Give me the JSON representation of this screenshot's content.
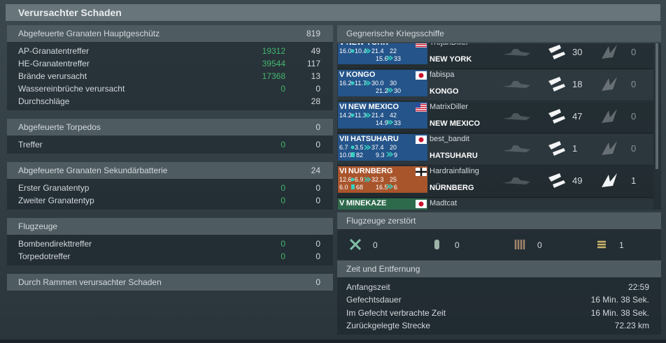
{
  "header": {
    "title": "Verursachter Schaden"
  },
  "left": {
    "sections": [
      {
        "title": "Abgefeuerte Granaten Hauptgeschütz",
        "total": 819,
        "rows": [
          {
            "label": "AP-Granatentreffer",
            "damage": 19312,
            "count": 49
          },
          {
            "label": "HE-Granatentreffer",
            "damage": 39544,
            "count": 117
          },
          {
            "label": "Brände verursacht",
            "damage": 17368,
            "count": 13
          },
          {
            "label": "Wassereinbrüche verursacht",
            "damage": 0,
            "count": 0
          },
          {
            "label": "Durchschläge",
            "count": 28
          }
        ]
      },
      {
        "title": "Abgefeuerte Torpedos",
        "total": 0,
        "rows": [
          {
            "label": "Treffer",
            "damage": 0,
            "count": 0
          }
        ]
      },
      {
        "title": "Abgefeuerte Granaten Sekundärbatterie",
        "total": 24,
        "rows": [
          {
            "label": "Erster Granatentyp",
            "damage": 0,
            "count": 0
          },
          {
            "label": "Zweiter Granatentyp",
            "damage": 0,
            "count": 0
          }
        ]
      },
      {
        "title": "Flugzeuge",
        "rows": [
          {
            "label": "Bombendirekttreffer",
            "damage": 0,
            "count": 0
          },
          {
            "label": "Torpedotreffer",
            "damage": 0,
            "count": 0
          }
        ]
      },
      {
        "title": "Durch Rammen verursachter Schaden",
        "total": 0,
        "rows": []
      }
    ]
  },
  "ships": {
    "title": "Gegnerische Kriegsschiffe",
    "rows": [
      {
        "tier": "V",
        "card_name": "NEW YORK",
        "stats": [
          "16.0",
          "10.4",
          "21.4",
          "22"
        ],
        "stats2": [
          "15.6",
          "33"
        ],
        "player": "TrojanDiller",
        "ship": "NEW YORK",
        "hits": 30,
        "fires": 0
      },
      {
        "tier": "V",
        "card_name": "KONGO",
        "stats": [
          "16.2",
          "11.7",
          "30.0",
          "30"
        ],
        "stats2": [
          "21.2",
          "30"
        ],
        "player": "fabispa",
        "ship": "KONGO",
        "hits": 18,
        "fires": 0
      },
      {
        "tier": "VI",
        "card_name": "NEW MEXICO",
        "stats": [
          "14.2",
          "11.3",
          "21.4",
          "42"
        ],
        "stats2": [
          "14.9",
          "33"
        ],
        "player": "MatrixDiller",
        "ship": "NEW MEXICO",
        "hits": 47,
        "fires": 0
      },
      {
        "tier": "VII",
        "card_name": "HATSUHARU",
        "stats": [
          "6.7",
          "3.5",
          "37.4",
          "20"
        ],
        "stats_left": [
          "10.0",
          "82"
        ],
        "stats2": [
          "9.3",
          "9"
        ],
        "player": "best_bandit",
        "ship": "HATSUHARU",
        "hits": 1,
        "fires": 0
      },
      {
        "tier": "VI",
        "card_name": "NURNBERG",
        "stats": [
          "12.6",
          "6.9",
          "32.3",
          "25"
        ],
        "stats_left": [
          "6.0",
          "68"
        ],
        "stats2": [
          "16.5",
          "6"
        ],
        "player": "Hardrainfalling",
        "ship": "NÜRNBERG",
        "hits": 49,
        "fires": 1
      },
      {
        "tier": "V",
        "card_name": "MINEKAZE",
        "player": "Madtcat"
      }
    ]
  },
  "planes": {
    "title": "Flugzeuge zerstört",
    "values": [
      0,
      0,
      0,
      1
    ]
  },
  "time": {
    "title": "Zeit und Entfernung",
    "rows": [
      {
        "label": "Anfangszeit",
        "value": "22:59"
      },
      {
        "label": "Gefechtsdauer",
        "value": "16 Min. 38 Sek."
      },
      {
        "label": "Im Gefecht verbrachte Zeit",
        "value": "16 Min. 38 Sek."
      },
      {
        "label": "Zurückgelegte Strecke",
        "value": "72.23 km"
      }
    ]
  }
}
